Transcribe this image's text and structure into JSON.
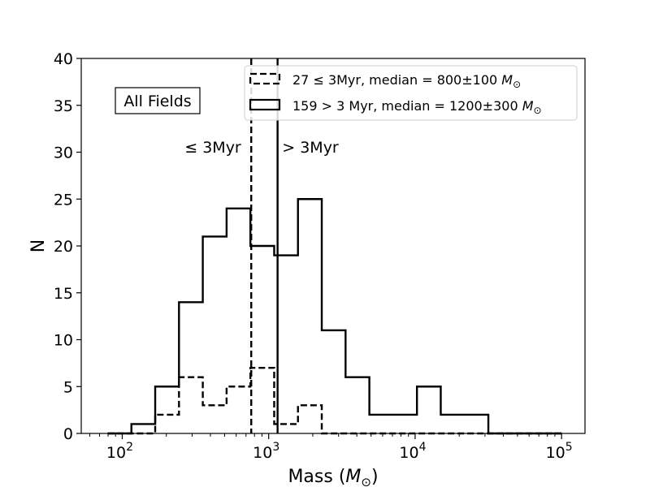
{
  "chart_data": {
    "type": "histogram",
    "xscale": "log",
    "xlim_log10": [
      1.72,
      5.16
    ],
    "ylim": [
      0,
      40
    ],
    "xlabel": "Mass (M⊙)",
    "ylabel": "N",
    "x_ticks": [
      {
        "value": 100,
        "base": "10",
        "exp": "2"
      },
      {
        "value": 1000,
        "base": "10",
        "exp": "3"
      },
      {
        "value": 10000,
        "base": "10",
        "exp": "4"
      },
      {
        "value": 100000,
        "base": "10",
        "exp": "5"
      }
    ],
    "y_ticks": [
      0,
      5,
      10,
      15,
      20,
      25,
      30,
      35,
      40
    ],
    "bin_edges_log10": [
      1.9,
      2.0625,
      2.225,
      2.3875,
      2.55,
      2.7125,
      2.875,
      3.0375,
      3.2,
      3.3625,
      3.525,
      3.6875,
      3.85,
      4.0125,
      4.175,
      4.3375,
      4.5,
      4.6625,
      4.825,
      5.0
    ],
    "series": [
      {
        "name": "159 > 3 Myr, median = 1200±300 M⊙",
        "style": "solid",
        "counts": [
          0,
          1,
          5,
          14,
          21,
          24,
          20,
          19,
          25,
          11,
          6,
          2,
          2,
          5,
          2,
          2,
          0,
          0,
          0
        ]
      },
      {
        "name": "27 ≤ 3Myr, median = 800±100 M⊙",
        "style": "dashed",
        "counts": [
          0,
          0,
          2,
          6,
          3,
          5,
          7,
          1,
          3,
          0,
          0,
          0,
          0,
          0,
          0,
          0,
          0,
          0,
          0
        ]
      }
    ],
    "vlines": [
      {
        "label": "≤ 3Myr",
        "value": 760,
        "style": "dashed"
      },
      {
        "label": "> 3Myr",
        "value": 1150,
        "style": "solid"
      }
    ],
    "annotation_box": "All Fields",
    "legend": {
      "placement": "top-right",
      "entries": [
        {
          "prefix": "27 ≤ 3Myr, median = 800±100 ",
          "italic": "M",
          "sub": "⊙",
          "style": "dashed"
        },
        {
          "prefix": "159 > 3 Myr, median = 1200±300 ",
          "italic": "M",
          "sub": "⊙",
          "style": "solid"
        }
      ]
    },
    "colors": {
      "line": "#000000",
      "background": "#ffffff"
    }
  }
}
